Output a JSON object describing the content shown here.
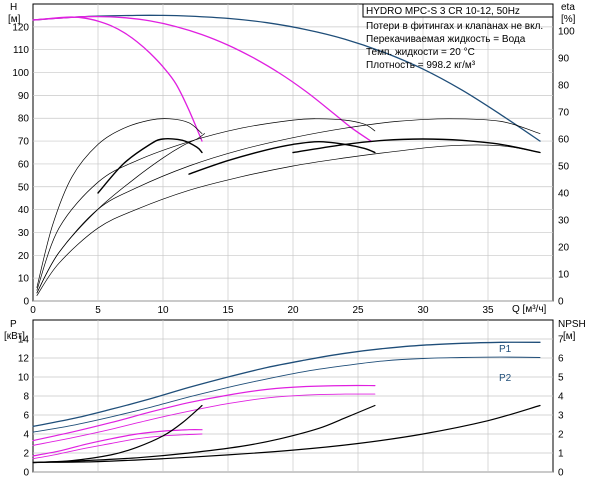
{
  "chart_data": [
    {
      "type": "line",
      "title": "HYDRO MPC-S 3 CR 10-12, 50Hz",
      "notes": [
        "Потери в фитингах и клапанах не вкл.",
        "Перекачиваемая жидкость = Вода",
        "Темп. жидкости = 20 °C",
        "Плотность = 998.2 кг/м³"
      ],
      "left_axis": {
        "name": "H",
        "unit": "[м]",
        "range": [
          0,
          130
        ],
        "ticks": [
          0,
          10,
          20,
          30,
          40,
          50,
          60,
          70,
          80,
          90,
          100,
          110,
          120
        ]
      },
      "right_axis": {
        "name": "eta",
        "unit": "[%]",
        "range": [
          0,
          110
        ],
        "ticks": [
          0,
          10,
          20,
          30,
          40,
          50,
          60,
          70,
          80,
          90,
          100
        ]
      },
      "x_axis": {
        "label": "Q [м³/ч]",
        "range": [
          0,
          40
        ],
        "ticks": [
          0,
          5,
          10,
          15,
          20,
          25,
          30,
          35
        ]
      },
      "series": [
        {
          "axis": "left",
          "color": "#1f4e79",
          "width": 1.3,
          "x": [
            0,
            4,
            8,
            10,
            12,
            15,
            18,
            21,
            24,
            27,
            30,
            33,
            36,
            39
          ],
          "values": [
            123,
            124.5,
            125,
            125,
            124.7,
            123.7,
            121.8,
            118.8,
            114.6,
            108.8,
            101.5,
            92.3,
            81.5,
            70
          ]
        },
        {
          "axis": "left",
          "color": "#e020e0",
          "width": 1.3,
          "x": [
            0,
            3,
            5,
            7,
            9,
            11,
            13,
            15,
            17,
            19,
            21,
            23,
            24.5,
            26
          ],
          "values": [
            123,
            124.2,
            124.5,
            124,
            122.6,
            120.1,
            116.6,
            112,
            106.3,
            99.6,
            91.7,
            82.7,
            75.8,
            70
          ]
        },
        {
          "axis": "left",
          "color": "#e020e0",
          "width": 1.3,
          "x": [
            0,
            2,
            3,
            4,
            5,
            6,
            7,
            8,
            9,
            10,
            11,
            12,
            13
          ],
          "values": [
            123,
            124,
            124.3,
            123.8,
            122.5,
            120.5,
            117.5,
            113.5,
            108.5,
            102.5,
            95,
            83.5,
            70
          ]
        },
        {
          "axis": "right",
          "color": "#000000",
          "width": 0.7,
          "x": [
            0.3,
            1.5,
            3,
            5,
            7,
            9,
            10.5,
            12,
            13
          ],
          "values": [
            5,
            28,
            46,
            58,
            64,
            67,
            67.5,
            66,
            62
          ]
        },
        {
          "axis": "right",
          "color": "#000000",
          "width": 0.7,
          "x": [
            0.3,
            2,
            5,
            8,
            10,
            11.5,
            12.6,
            13.2
          ],
          "values": [
            3,
            18,
            34,
            46,
            53,
            57.5,
            60,
            62
          ]
        },
        {
          "axis": "right",
          "color": "#000000",
          "width": 0.7,
          "x": [
            0.3,
            2,
            5,
            8,
            12,
            16,
            20,
            22,
            24,
            25.5,
            26.3
          ],
          "values": [
            4,
            27,
            44,
            52,
            59,
            64,
            67,
            67.5,
            67,
            65.5,
            63
          ]
        },
        {
          "axis": "right",
          "color": "#000000",
          "width": 0.7,
          "x": [
            0.3,
            2,
            5,
            8,
            12,
            16,
            20,
            24,
            28,
            32,
            36,
            39
          ],
          "values": [
            3,
            18,
            34,
            42,
            50,
            56,
            60.5,
            64,
            66.5,
            67.5,
            66.5,
            62
          ]
        },
        {
          "axis": "right",
          "color": "#000000",
          "width": 0.7,
          "x": [
            0.3,
            2,
            5,
            8,
            12,
            16,
            20,
            24,
            28,
            32,
            36,
            39
          ],
          "values": [
            2,
            14,
            27,
            34,
            41,
            46,
            50,
            53,
            55.5,
            57.5,
            57.5,
            55
          ]
        },
        {
          "axis": "right",
          "color": "#000000",
          "width": 1.4,
          "x": [
            5,
            7,
            9,
            10,
            11.5,
            12.6,
            13
          ],
          "values": [
            40,
            51,
            58,
            60,
            59.5,
            57,
            55
          ]
        },
        {
          "axis": "right",
          "color": "#000000",
          "width": 1.4,
          "x": [
            12,
            15,
            18,
            20,
            22,
            24,
            25.5,
            26.3
          ],
          "values": [
            47,
            52,
            56,
            58,
            59,
            58,
            56.5,
            55
          ]
        },
        {
          "axis": "right",
          "color": "#000000",
          "width": 1.4,
          "x": [
            20,
            24,
            27,
            30,
            33,
            36,
            39
          ],
          "values": [
            55,
            58,
            59.5,
            60,
            59.5,
            58,
            55
          ]
        }
      ]
    },
    {
      "type": "line",
      "left_axis": {
        "name": "P",
        "unit": "[кВт]",
        "range": [
          0,
          16
        ],
        "ticks": [
          0,
          2,
          4,
          6,
          8,
          10,
          12,
          14
        ]
      },
      "right_axis": {
        "name": "NPSH",
        "unit": "[м]",
        "range": [
          0,
          8
        ],
        "ticks": [
          0,
          1,
          2,
          3,
          4,
          5,
          6,
          7
        ]
      },
      "x_axis": {
        "range": [
          0,
          40
        ]
      },
      "labels": [
        "P1",
        "P2"
      ],
      "series": [
        {
          "name": "P1",
          "axis": "left",
          "color": "#1f4e79",
          "width": 1.3,
          "x": [
            0,
            3,
            6,
            9,
            12,
            15,
            18,
            21,
            24,
            27,
            30,
            33,
            36,
            39
          ],
          "values": [
            4.8,
            5.6,
            6.6,
            7.7,
            8.9,
            10,
            11,
            11.8,
            12.5,
            13,
            13.35,
            13.55,
            13.65,
            13.65
          ]
        },
        {
          "name": "P2",
          "axis": "left",
          "color": "#1f4e79",
          "width": 0.9,
          "x": [
            0,
            3,
            6,
            9,
            12,
            15,
            18,
            21,
            24,
            27,
            30,
            33,
            36,
            39
          ],
          "values": [
            4.2,
            4.9,
            5.8,
            6.8,
            7.9,
            8.9,
            9.8,
            10.6,
            11.2,
            11.7,
            11.95,
            12.05,
            12.1,
            12.05
          ]
        },
        {
          "axis": "left",
          "color": "#e020e0",
          "width": 1.2,
          "x": [
            0,
            3,
            6,
            9,
            12,
            15,
            18,
            21,
            24,
            26.3
          ],
          "values": [
            3.3,
            4.2,
            5.2,
            6.3,
            7.3,
            8.1,
            8.7,
            9,
            9.1,
            9.1
          ]
        },
        {
          "axis": "left",
          "color": "#e020e0",
          "width": 0.9,
          "x": [
            0,
            3,
            6,
            9,
            12,
            15,
            18,
            21,
            24,
            26.3
          ],
          "values": [
            2.8,
            3.6,
            4.5,
            5.5,
            6.4,
            7.2,
            7.8,
            8.1,
            8.2,
            8.2
          ]
        },
        {
          "axis": "left",
          "color": "#e020e0",
          "width": 1.2,
          "x": [
            0,
            2,
            4,
            6,
            8,
            10,
            12,
            13
          ],
          "values": [
            1.7,
            2.2,
            2.9,
            3.5,
            4,
            4.3,
            4.45,
            4.45
          ]
        },
        {
          "axis": "left",
          "color": "#e020e0",
          "width": 0.9,
          "x": [
            0,
            2,
            4,
            6,
            8,
            10,
            12,
            13
          ],
          "values": [
            1.4,
            1.9,
            2.5,
            3,
            3.5,
            3.8,
            3.95,
            4
          ]
        },
        {
          "axis": "right",
          "color": "#000000",
          "width": 1.2,
          "x": [
            0,
            3,
            6,
            8,
            10,
            11.5,
            13
          ],
          "values": [
            0.5,
            0.6,
            0.9,
            1.3,
            1.9,
            2.6,
            3.5
          ]
        },
        {
          "axis": "right",
          "color": "#000000",
          "width": 1.2,
          "x": [
            0,
            4,
            8,
            12,
            16,
            19,
            22,
            24,
            26.3
          ],
          "values": [
            0.5,
            0.6,
            0.75,
            1,
            1.35,
            1.75,
            2.3,
            2.85,
            3.5
          ]
        },
        {
          "axis": "right",
          "color": "#000000",
          "width": 1.2,
          "x": [
            0,
            5,
            10,
            15,
            20,
            25,
            30,
            35,
            39
          ],
          "values": [
            0.5,
            0.55,
            0.7,
            0.9,
            1.15,
            1.5,
            2,
            2.7,
            3.5
          ]
        }
      ]
    }
  ]
}
